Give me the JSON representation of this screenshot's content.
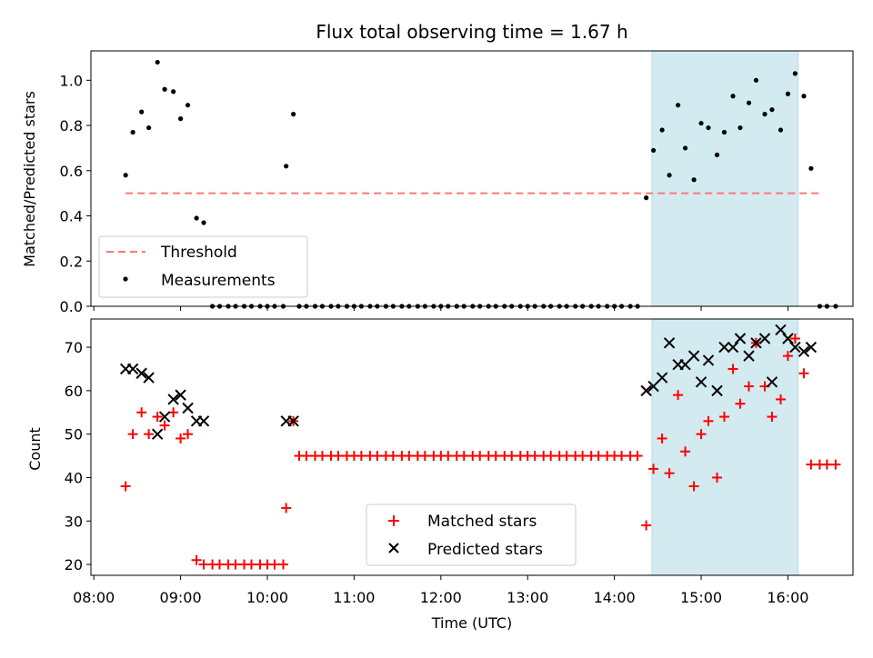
{
  "title": "Flux total observing time = 1.67 h",
  "colors": {
    "threshold": "#ff7777",
    "measurements": "#000000",
    "matched": "#ff0000",
    "predicted": "#000000",
    "shaded": "#d3eaf0"
  },
  "chart_data": [
    {
      "type": "scatter",
      "title": "Flux total observing time = 1.67 h",
      "ylabel": "Matched/Predicted stars",
      "xlabel": "",
      "xlim": [
        "07:58",
        "16:45"
      ],
      "ylim": [
        0,
        1.13
      ],
      "yticks": [
        "0.0",
        "0.2",
        "0.4",
        "0.6",
        "0.8",
        "1.0"
      ],
      "grid": false,
      "legend_location": "lower-left",
      "shaded_interval": [
        "14:26",
        "16:07"
      ],
      "threshold": {
        "name": "Threshold",
        "y": 0.5,
        "x_range": [
          "08:22",
          "16:22"
        ]
      },
      "series": [
        {
          "name": "Measurements",
          "points": [
            [
              "08:22",
              0.58
            ],
            [
              "08:27",
              0.77
            ],
            [
              "08:33",
              0.86
            ],
            [
              "08:38",
              0.79
            ],
            [
              "08:44",
              1.08
            ],
            [
              "08:49",
              0.96
            ],
            [
              "08:55",
              0.95
            ],
            [
              "09:00",
              0.83
            ],
            [
              "09:05",
              0.89
            ],
            [
              "09:11",
              0.39
            ],
            [
              "09:16",
              0.37
            ],
            [
              "09:22",
              0
            ],
            [
              "09:27",
              0
            ],
            [
              "09:33",
              0
            ],
            [
              "09:38",
              0
            ],
            [
              "09:44",
              0
            ],
            [
              "09:49",
              0
            ],
            [
              "09:55",
              0
            ],
            [
              "10:00",
              0
            ],
            [
              "10:05",
              0
            ],
            [
              "10:11",
              0
            ],
            [
              "10:13",
              0.62
            ],
            [
              "10:18",
              0.85
            ],
            [
              "10:22",
              0
            ],
            [
              "10:27",
              0
            ],
            [
              "10:33",
              0
            ],
            [
              "10:38",
              0
            ],
            [
              "10:44",
              0
            ],
            [
              "10:49",
              0
            ],
            [
              "10:55",
              0
            ],
            [
              "11:00",
              0
            ],
            [
              "11:05",
              0
            ],
            [
              "11:11",
              0
            ],
            [
              "11:16",
              0
            ],
            [
              "11:22",
              0
            ],
            [
              "11:27",
              0
            ],
            [
              "11:33",
              0
            ],
            [
              "11:38",
              0
            ],
            [
              "11:44",
              0
            ],
            [
              "11:49",
              0
            ],
            [
              "11:55",
              0
            ],
            [
              "12:00",
              0
            ],
            [
              "12:05",
              0
            ],
            [
              "12:11",
              0
            ],
            [
              "12:16",
              0
            ],
            [
              "12:22",
              0
            ],
            [
              "12:27",
              0
            ],
            [
              "12:33",
              0
            ],
            [
              "12:38",
              0
            ],
            [
              "12:44",
              0
            ],
            [
              "12:49",
              0
            ],
            [
              "12:55",
              0
            ],
            [
              "13:00",
              0
            ],
            [
              "13:05",
              0
            ],
            [
              "13:11",
              0
            ],
            [
              "13:16",
              0
            ],
            [
              "13:22",
              0
            ],
            [
              "13:27",
              0
            ],
            [
              "13:33",
              0
            ],
            [
              "13:38",
              0
            ],
            [
              "13:44",
              0
            ],
            [
              "13:49",
              0
            ],
            [
              "13:55",
              0
            ],
            [
              "14:00",
              0
            ],
            [
              "14:05",
              0
            ],
            [
              "14:11",
              0
            ],
            [
              "14:16",
              0
            ],
            [
              "14:22",
              0.48
            ],
            [
              "14:27",
              0.69
            ],
            [
              "14:33",
              0.78
            ],
            [
              "14:38",
              0.58
            ],
            [
              "14:44",
              0.89
            ],
            [
              "14:49",
              0.7
            ],
            [
              "14:55",
              0.56
            ],
            [
              "15:00",
              0.81
            ],
            [
              "15:05",
              0.79
            ],
            [
              "15:11",
              0.67
            ],
            [
              "15:16",
              0.77
            ],
            [
              "15:22",
              0.93
            ],
            [
              "15:27",
              0.79
            ],
            [
              "15:33",
              0.9
            ],
            [
              "15:38",
              1.0
            ],
            [
              "15:44",
              0.85
            ],
            [
              "15:49",
              0.87
            ],
            [
              "15:55",
              0.78
            ],
            [
              "16:00",
              0.94
            ],
            [
              "16:05",
              1.03
            ],
            [
              "16:11",
              0.93
            ],
            [
              "16:16",
              0.61
            ],
            [
              "16:22",
              0
            ],
            [
              "16:27",
              0
            ],
            [
              "16:33",
              0
            ]
          ]
        }
      ]
    },
    {
      "type": "scatter",
      "title": "",
      "xlabel": "Time (UTC)",
      "ylabel": "Count",
      "xlim": [
        "07:58",
        "16:45"
      ],
      "ylim": [
        17.5,
        76.5
      ],
      "xticks": [
        "08:00",
        "09:00",
        "10:00",
        "11:00",
        "12:00",
        "13:00",
        "14:00",
        "15:00",
        "16:00"
      ],
      "yticks": [
        "20",
        "30",
        "40",
        "50",
        "60",
        "70"
      ],
      "grid": false,
      "legend_location": "lower-center",
      "shaded_interval": [
        "14:26",
        "16:07"
      ],
      "series": [
        {
          "name": "Matched stars",
          "points": [
            [
              "08:22",
              38
            ],
            [
              "08:27",
              50
            ],
            [
              "08:33",
              55
            ],
            [
              "08:38",
              50
            ],
            [
              "08:44",
              54
            ],
            [
              "08:49",
              52
            ],
            [
              "08:55",
              55
            ],
            [
              "09:00",
              49
            ],
            [
              "09:05",
              50
            ],
            [
              "09:11",
              21
            ],
            [
              "09:16",
              20
            ],
            [
              "09:22",
              20
            ],
            [
              "09:27",
              20
            ],
            [
              "09:33",
              20
            ],
            [
              "09:38",
              20
            ],
            [
              "09:44",
              20
            ],
            [
              "09:49",
              20
            ],
            [
              "09:55",
              20
            ],
            [
              "10:00",
              20
            ],
            [
              "10:05",
              20
            ],
            [
              "10:11",
              20
            ],
            [
              "10:13",
              33
            ],
            [
              "10:18",
              53
            ],
            [
              "10:22",
              45
            ],
            [
              "10:27",
              45
            ],
            [
              "10:33",
              45
            ],
            [
              "10:38",
              45
            ],
            [
              "10:44",
              45
            ],
            [
              "10:49",
              45
            ],
            [
              "10:55",
              45
            ],
            [
              "11:00",
              45
            ],
            [
              "11:05",
              45
            ],
            [
              "11:11",
              45
            ],
            [
              "11:16",
              45
            ],
            [
              "11:22",
              45
            ],
            [
              "11:27",
              45
            ],
            [
              "11:33",
              45
            ],
            [
              "11:38",
              45
            ],
            [
              "11:44",
              45
            ],
            [
              "11:49",
              45
            ],
            [
              "11:55",
              45
            ],
            [
              "12:00",
              45
            ],
            [
              "12:05",
              45
            ],
            [
              "12:11",
              45
            ],
            [
              "12:16",
              45
            ],
            [
              "12:22",
              45
            ],
            [
              "12:27",
              45
            ],
            [
              "12:33",
              45
            ],
            [
              "12:38",
              45
            ],
            [
              "12:44",
              45
            ],
            [
              "12:49",
              45
            ],
            [
              "12:55",
              45
            ],
            [
              "13:00",
              45
            ],
            [
              "13:05",
              45
            ],
            [
              "13:11",
              45
            ],
            [
              "13:16",
              45
            ],
            [
              "13:22",
              45
            ],
            [
              "13:27",
              45
            ],
            [
              "13:33",
              45
            ],
            [
              "13:38",
              45
            ],
            [
              "13:44",
              45
            ],
            [
              "13:49",
              45
            ],
            [
              "13:55",
              45
            ],
            [
              "14:00",
              45
            ],
            [
              "14:05",
              45
            ],
            [
              "14:11",
              45
            ],
            [
              "14:16",
              45
            ],
            [
              "14:22",
              29
            ],
            [
              "14:27",
              42
            ],
            [
              "14:33",
              49
            ],
            [
              "14:38",
              41
            ],
            [
              "14:44",
              59
            ],
            [
              "14:49",
              46
            ],
            [
              "14:55",
              38
            ],
            [
              "15:00",
              50
            ],
            [
              "15:05",
              53
            ],
            [
              "15:11",
              40
            ],
            [
              "15:16",
              54
            ],
            [
              "15:22",
              65
            ],
            [
              "15:27",
              57
            ],
            [
              "15:33",
              61
            ],
            [
              "15:38",
              71
            ],
            [
              "15:44",
              61
            ],
            [
              "15:49",
              54
            ],
            [
              "15:55",
              58
            ],
            [
              "16:00",
              68
            ],
            [
              "16:05",
              72
            ],
            [
              "16:11",
              64
            ],
            [
              "16:16",
              43
            ],
            [
              "16:22",
              43
            ],
            [
              "16:27",
              43
            ],
            [
              "16:33",
              43
            ]
          ]
        },
        {
          "name": "Predicted stars",
          "points": [
            [
              "08:22",
              65
            ],
            [
              "08:27",
              65
            ],
            [
              "08:33",
              64
            ],
            [
              "08:38",
              63
            ],
            [
              "08:44",
              50
            ],
            [
              "08:49",
              54
            ],
            [
              "08:55",
              58
            ],
            [
              "09:00",
              59
            ],
            [
              "09:05",
              56
            ],
            [
              "09:11",
              53
            ],
            [
              "09:16",
              53
            ],
            [
              "10:13",
              53
            ],
            [
              "10:18",
              53
            ],
            [
              "14:22",
              60
            ],
            [
              "14:27",
              61
            ],
            [
              "14:33",
              63
            ],
            [
              "14:38",
              71
            ],
            [
              "14:44",
              66
            ],
            [
              "14:49",
              66
            ],
            [
              "14:55",
              68
            ],
            [
              "15:00",
              62
            ],
            [
              "15:05",
              67
            ],
            [
              "15:11",
              60
            ],
            [
              "15:16",
              70
            ],
            [
              "15:22",
              70
            ],
            [
              "15:27",
              72
            ],
            [
              "15:33",
              68
            ],
            [
              "15:38",
              71
            ],
            [
              "15:44",
              72
            ],
            [
              "15:49",
              62
            ],
            [
              "15:55",
              74
            ],
            [
              "16:00",
              72
            ],
            [
              "16:05",
              70
            ],
            [
              "16:11",
              69
            ],
            [
              "16:16",
              70
            ]
          ]
        }
      ]
    }
  ]
}
